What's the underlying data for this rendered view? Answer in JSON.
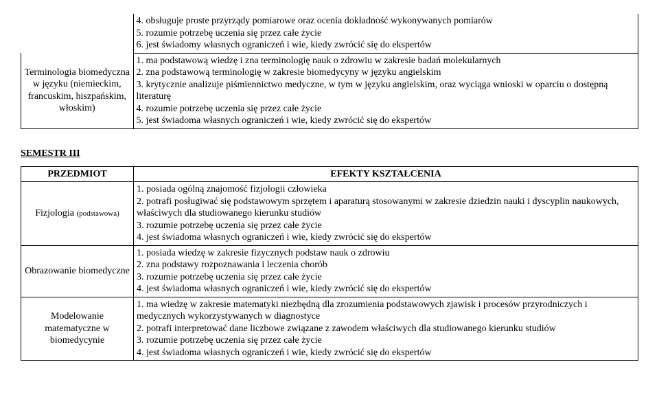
{
  "top": {
    "row1": {
      "items": [
        "4. obsługuje proste przyrządy pomiarowe oraz ocenia dokładność wykonywanych pomiarów",
        "5. rozumie potrzebę uczenia się przez całe życie",
        "6. jest świadomy własnych ograniczeń i wie, kiedy zwrócić się do ekspertów"
      ]
    },
    "row2": {
      "label": "Terminologia biomedyczna w języku (niemieckim, francuskim, hiszpańskim, włoskim)",
      "items": [
        "1. ma podstawową wiedzę i zna terminologię nauk o zdrowiu w zakresie badań molekularnych",
        "2. zna podstawową terminologię w zakresie biomedycyny w języku angielskim",
        "3. krytycznie analizuje piśmiennictwo medyczne, w tym w języku angielskim, oraz  wyciąga wnioski w oparciu o dostępną literaturę",
        "4. rozumie potrzebę uczenia się przez całe życie",
        "5. jest świadoma własnych ograniczeń i wie, kiedy zwrócić się do ekspertów"
      ]
    }
  },
  "semester_heading": "SEMESTR III",
  "col_headers": {
    "left": "PRZEDMIOT",
    "right": "EFEKTY KSZTAŁCENIA"
  },
  "s3": {
    "r1": {
      "label": "Fizjologia (podstawowa)",
      "items": [
        "1. posiada ogólną znajomość fizjologii człowieka",
        "2. potrafi posługiwać się podstawowym sprzętem i aparaturą stosowanymi w zakresie dziedzin nauki i dyscyplin naukowych, właściwych dla studiowanego kierunku studiów",
        "3. rozumie potrzebę uczenia się przez całe życie",
        "4. jest świadoma własnych ograniczeń i wie, kiedy zwrócić się do ekspertów"
      ]
    },
    "r2": {
      "label": "Obrazowanie biomedyczne",
      "items": [
        "1. posiada wiedzę w zakresie fizycznych podstaw nauk o zdrowiu",
        "2. zna podstawy rozpoznawania i leczenia chorób",
        "3. rozumie potrzebę uczenia się przez całe życie",
        "4. jest świadoma własnych ograniczeń i wie, kiedy zwrócić się do ekspertów"
      ]
    },
    "r3": {
      "label": "Modelowanie matematyczne w biomedycynie",
      "items": [
        "1. ma wiedzę w zakresie matematyki niezbędną dla zrozumienia podstawowych zjawisk i procesów przyrodniczych i medycznych wykorzystywanych w diagnostyce",
        "2. potrafi interpretować dane liczbowe związane z zawodem właściwych dla studiowanego kierunku studiów",
        "3. rozumie potrzebę uczenia się przez całe życie",
        "4. jest świadoma własnych ograniczeń i wie, kiedy zwrócić się do ekspertów"
      ]
    }
  }
}
